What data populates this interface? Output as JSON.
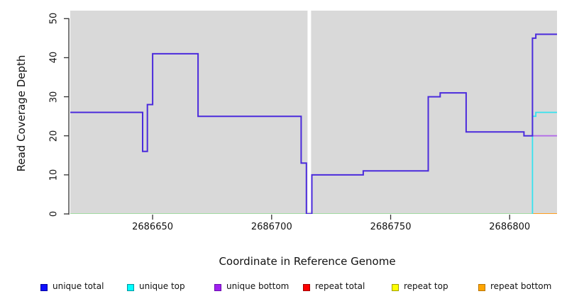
{
  "y_axis": {
    "label": "Read Coverage Depth",
    "ticks": [
      0,
      10,
      20,
      30,
      40,
      50
    ],
    "value_range_at_plot_edges": [
      0,
      52.05
    ]
  },
  "x_axis": {
    "label": "Coordinate in Reference Genome",
    "ticks": [
      2686650,
      2686700,
      2686750,
      2686800
    ],
    "value_range_at_plot_edges": [
      2686615.4,
      2686819.9
    ]
  },
  "legend": {
    "items": [
      {
        "label": "unique total",
        "fill": "#0f0fff",
        "border": "#0000a0"
      },
      {
        "label": "unique top",
        "fill": "#00ffff",
        "border": "#00949e"
      },
      {
        "label": "unique bottom",
        "fill": "#a020f0",
        "border": "#6a0dad"
      },
      {
        "label": "repeat total",
        "fill": "#ff0000",
        "border": "#a00000"
      },
      {
        "label": "repeat top",
        "fill": "#ffff00",
        "border": "#9e9e00"
      },
      {
        "label": "repeat bottom",
        "fill": "#ffa500",
        "border": "#b87400"
      }
    ]
  },
  "chart_data": {
    "type": "line",
    "subtype": "step-coverage-plot",
    "title": "",
    "xlabel": "Coordinate in Reference Genome",
    "ylabel": "Read Coverage Depth",
    "xlim": [
      2686615.4,
      2686819.9
    ],
    "ylim": [
      0,
      52.05
    ],
    "grid": false,
    "plot_background": "#d9d9d9",
    "legend_position": "bottom",
    "gap_region": {
      "note": "white vertical stripe masking the plot (contig break)",
      "x_start": 2686715.1,
      "x_end": 2686716.6,
      "color": "#ffffff"
    },
    "series": [
      {
        "name": "repeats at zero (red/yellow over cyan, renders light green)",
        "draw_color": "#8fdc8f",
        "stroke_width": 1.6,
        "segments": [
          [
            2686615.4,
            2686809.6,
            0
          ]
        ]
      },
      {
        "name": "repeat bottom",
        "draw_color": "#ff9e1e",
        "stroke_width": 2,
        "segments": [
          [
            2686809.6,
            2686819.9,
            0
          ]
        ]
      },
      {
        "name": "unique bottom",
        "draw_color": "#b36be8",
        "stroke_width": 1.8,
        "segments": [
          [
            2686809.6,
            2686819.9,
            20
          ]
        ]
      },
      {
        "name": "unique top",
        "draw_color": "#35e2ee",
        "stroke_width": 1.8,
        "start_at_value": 0,
        "segments": [
          [
            2686809.6,
            2686811.0,
            25
          ],
          [
            2686811.0,
            2686819.9,
            26
          ]
        ]
      },
      {
        "name": "unique total",
        "draw_color": "#4b2bdc",
        "stroke_width": 2,
        "segments": [
          [
            2686615.4,
            2686645.8,
            26
          ],
          [
            2686645.8,
            2686647.8,
            16
          ],
          [
            2686647.8,
            2686650.0,
            28
          ],
          [
            2686650.0,
            2686669.1,
            41
          ],
          [
            2686669.1,
            2686712.4,
            25
          ],
          [
            2686712.4,
            2686714.6,
            13
          ],
          [
            2686714.6,
            2686716.9,
            0
          ],
          [
            2686716.9,
            2686738.5,
            10
          ],
          [
            2686738.5,
            2686765.8,
            11
          ],
          [
            2686765.8,
            2686770.8,
            30
          ],
          [
            2686770.8,
            2686781.7,
            31
          ],
          [
            2686781.7,
            2686806.0,
            21
          ],
          [
            2686806.0,
            2686809.6,
            20
          ],
          [
            2686809.6,
            2686811.0,
            45
          ],
          [
            2686811.0,
            2686819.9,
            46
          ]
        ]
      }
    ]
  }
}
